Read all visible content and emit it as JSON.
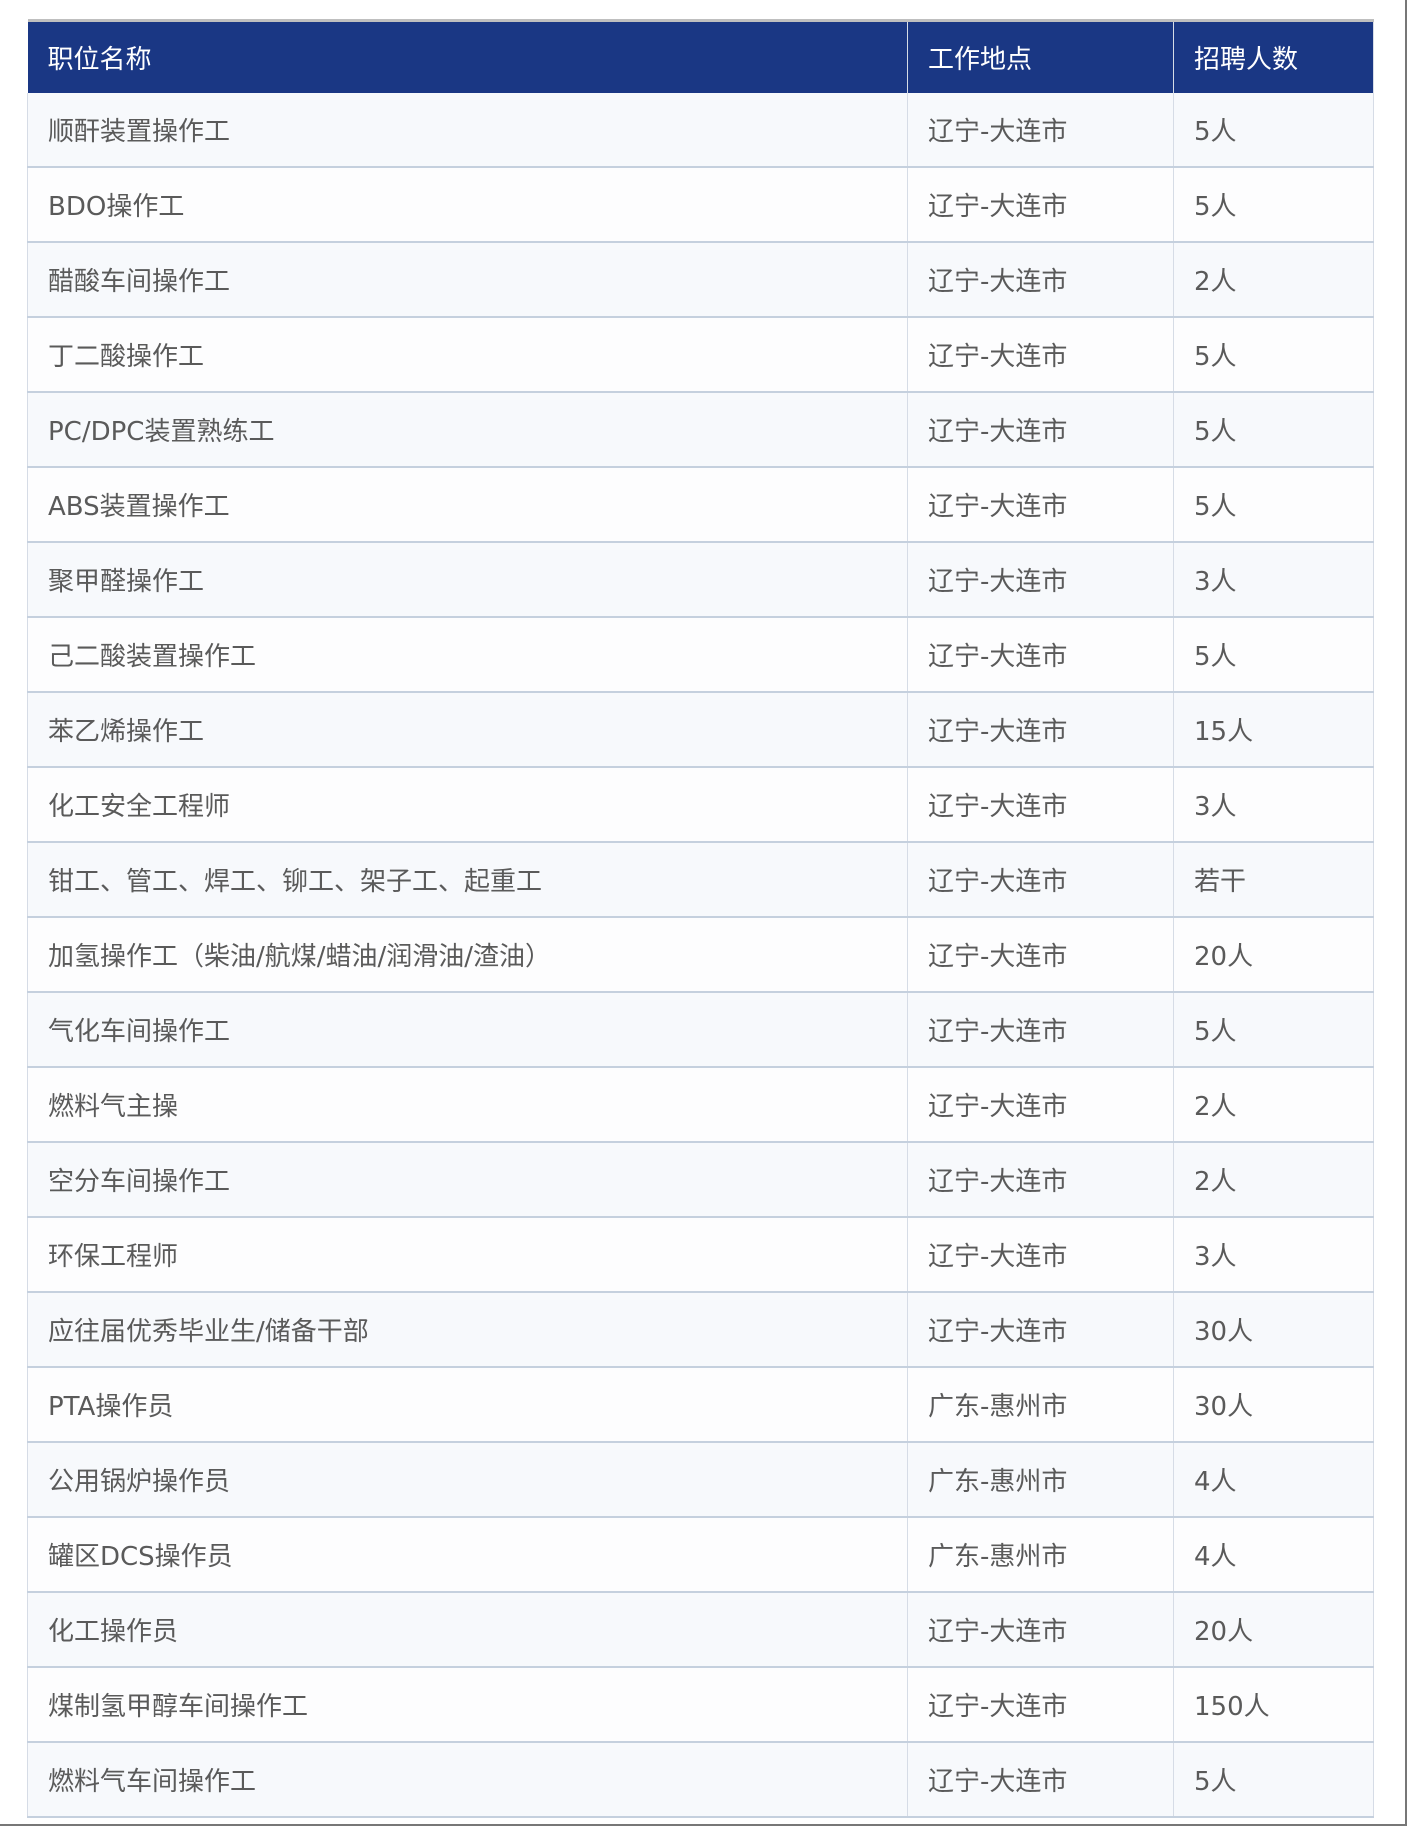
{
  "colors": {
    "header_bg": "#1a3784",
    "header_text": "#ffffff",
    "row_odd": "#f7f9fc",
    "row_even": "#fdfdfe",
    "text": "#5a5a5a"
  },
  "table": {
    "headers": [
      "职位名称",
      "工作地点",
      "招聘人数"
    ],
    "rows": [
      [
        "顺酐装置操作工",
        "辽宁-大连市",
        "5人"
      ],
      [
        "BDO操作工",
        "辽宁-大连市",
        "5人"
      ],
      [
        "醋酸车间操作工",
        "辽宁-大连市",
        "2人"
      ],
      [
        "丁二酸操作工",
        "辽宁-大连市",
        "5人"
      ],
      [
        "PC/DPC装置熟练工",
        "辽宁-大连市",
        "5人"
      ],
      [
        "ABS装置操作工",
        "辽宁-大连市",
        "5人"
      ],
      [
        "聚甲醛操作工",
        "辽宁-大连市",
        "3人"
      ],
      [
        "己二酸装置操作工",
        "辽宁-大连市",
        "5人"
      ],
      [
        "苯乙烯操作工",
        "辽宁-大连市",
        "15人"
      ],
      [
        "化工安全工程师",
        "辽宁-大连市",
        "3人"
      ],
      [
        "钳工、管工、焊工、铆工、架子工、起重工",
        "辽宁-大连市",
        "若干"
      ],
      [
        "加氢操作工（柴油/航煤/蜡油/润滑油/渣油）",
        "辽宁-大连市",
        "20人"
      ],
      [
        "气化车间操作工",
        "辽宁-大连市",
        "5人"
      ],
      [
        "燃料气主操",
        "辽宁-大连市",
        "2人"
      ],
      [
        "空分车间操作工",
        "辽宁-大连市",
        "2人"
      ],
      [
        "环保工程师",
        "辽宁-大连市",
        "3人"
      ],
      [
        "应往届优秀毕业生/储备干部",
        "辽宁-大连市",
        "30人"
      ],
      [
        "PTA操作员",
        "广东-惠州市",
        "30人"
      ],
      [
        "公用锅炉操作员",
        "广东-惠州市",
        "4人"
      ],
      [
        "罐区DCS操作员",
        "广东-惠州市",
        "4人"
      ],
      [
        "化工操作员",
        "辽宁-大连市",
        "20人"
      ],
      [
        "煤制氢甲醇车间操作工",
        "辽宁-大连市",
        "150人"
      ],
      [
        "燃料气车间操作工",
        "辽宁-大连市",
        "5人"
      ]
    ]
  }
}
